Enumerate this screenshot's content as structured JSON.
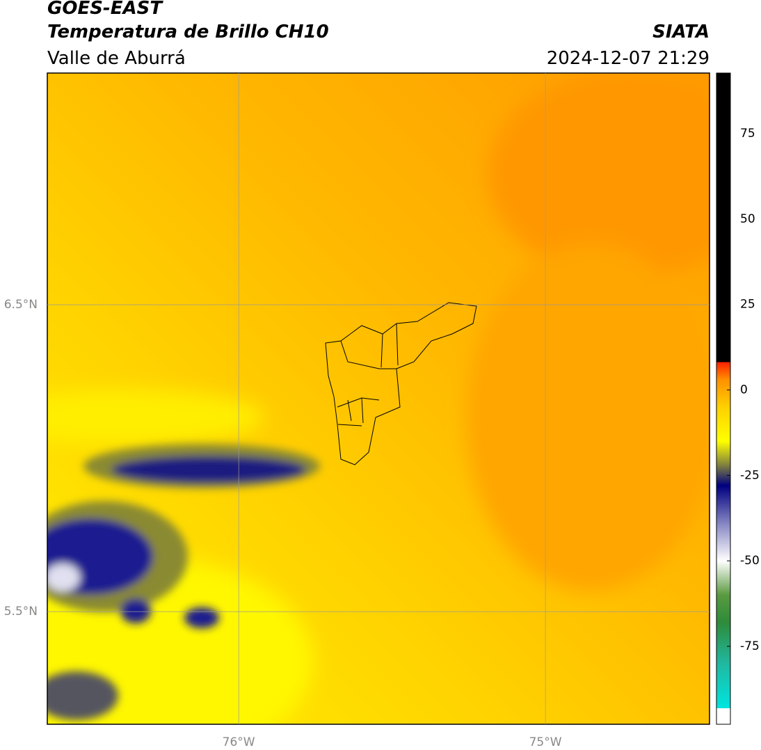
{
  "header": {
    "title": "GOES-EAST",
    "subtitle": "Temperatura de Brillo CH10",
    "region": "Valle de Aburrá",
    "source": "SIATA",
    "datetime": "2024-12-07 21:29"
  },
  "map": {
    "lon_range": [
      -76.624,
      -74.465
    ],
    "lat_range": [
      5.133,
      7.255
    ],
    "lon_gridlines": [
      {
        "value": -76,
        "label": "76°W"
      },
      {
        "value": -75,
        "label": "75°W"
      }
    ],
    "lat_gridlines": [
      {
        "value": 6.5,
        "label": "6.5°N"
      },
      {
        "value": 5.5,
        "label": "5.5°N"
      }
    ]
  },
  "colorbar": {
    "range": [
      -97.8,
      92.7
    ],
    "ticks": [
      -75,
      -50,
      -25,
      0,
      25,
      50,
      75
    ],
    "stops": [
      {
        "value": -97.8,
        "color": "#ffffff"
      },
      {
        "value": -93.1,
        "color": "#ffffff"
      },
      {
        "value": -93.1,
        "color": "#00e5e0"
      },
      {
        "value": -80,
        "color": "#20b8a0"
      },
      {
        "value": -68,
        "color": "#2e8b3a"
      },
      {
        "value": -60,
        "color": "#5a9a40"
      },
      {
        "value": -50,
        "color": "#ffffff"
      },
      {
        "value": -40,
        "color": "#9090c8"
      },
      {
        "value": -28,
        "color": "#000080"
      },
      {
        "value": -22,
        "color": "#808040"
      },
      {
        "value": -15,
        "color": "#ffff00"
      },
      {
        "value": -5,
        "color": "#ffd000"
      },
      {
        "value": 3,
        "color": "#ff9000"
      },
      {
        "value": 8.1,
        "color": "#ff2000"
      },
      {
        "value": 8.1,
        "color": "#000000"
      },
      {
        "value": 92.7,
        "color": "#000000"
      }
    ]
  }
}
